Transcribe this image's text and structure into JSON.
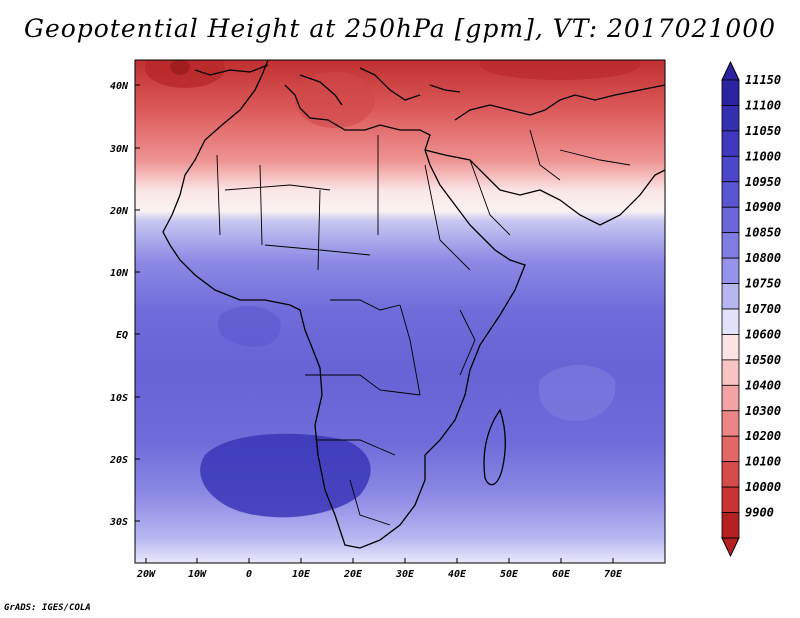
{
  "title": "Geopotential Height at 250hPa [gpm], VT: 2017021000",
  "credit": "GrADS: IGES/COLA",
  "map": {
    "lat_labels": [
      "40N",
      "30N",
      "20N",
      "10N",
      "EQ",
      "10S",
      "20S",
      "30S"
    ],
    "lon_labels": [
      "20W",
      "10W",
      "0",
      "10E",
      "20E",
      "30E",
      "40E",
      "50E",
      "60E",
      "70E"
    ],
    "lon_range": [
      -22,
      80
    ],
    "lat_range": [
      -36,
      44
    ]
  },
  "colorbar": {
    "labels": [
      "11150",
      "11100",
      "11050",
      "11000",
      "10950",
      "10900",
      "10850",
      "10800",
      "10750",
      "10700",
      "10600",
      "10500",
      "10400",
      "10300",
      "10200",
      "10100",
      "10000",
      "9900"
    ],
    "colors": [
      "#2b24a0",
      "#3530b0",
      "#4039bf",
      "#4c47c8",
      "#5a55d0",
      "#6b67da",
      "#7f7de2",
      "#9694ea",
      "#b7b6f1",
      "#e2e2f9",
      "#fde3e3",
      "#f9c3c3",
      "#f3a3a3",
      "#ec8585",
      "#e36767",
      "#d84b4b",
      "#c93434",
      "#b52020"
    ]
  },
  "field_colors": {
    "deep_red": "#c03030",
    "red": "#dc5a5a",
    "light_red": "#f4b0b0",
    "white": "#fbf2f2",
    "light_blue": "#9a98ea",
    "blue": "#7270dc",
    "deep_blue": "#3a36b8"
  }
}
